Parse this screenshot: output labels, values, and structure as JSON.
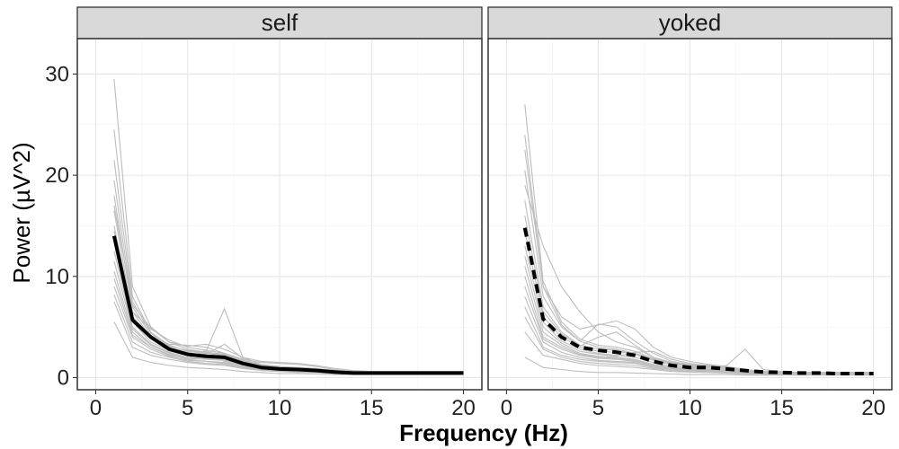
{
  "chart_data": {
    "type": "line",
    "xlabel": "Frequency (Hz)",
    "ylabel": "Power (µV^2)",
    "xlim": [
      -1,
      21
    ],
    "ylim": [
      -1.2,
      33.5
    ],
    "x_ticks": [
      0,
      5,
      10,
      15,
      20
    ],
    "y_ticks": [
      0,
      10,
      20,
      30
    ],
    "grid": true,
    "x": [
      1,
      2,
      3,
      4,
      5,
      6,
      7,
      8,
      9,
      10,
      11,
      12,
      13,
      14,
      15,
      16,
      17,
      18,
      19,
      20
    ],
    "panels": [
      {
        "label": "self",
        "mean": {
          "line_style": "solid",
          "values": [
            14.0,
            5.7,
            4.0,
            2.8,
            2.3,
            2.1,
            2.0,
            1.4,
            1.0,
            0.85,
            0.8,
            0.7,
            0.55,
            0.45,
            0.45,
            0.45,
            0.45,
            0.45,
            0.45,
            0.45
          ]
        },
        "subjects": [
          [
            29.5,
            9.0,
            5.0,
            3.5,
            2.8,
            2.5,
            2.3,
            1.7,
            1.3,
            1.1,
            1.0,
            0.9,
            0.7,
            0.6,
            0.55,
            0.55,
            0.5,
            0.5,
            0.5,
            0.5
          ],
          [
            24.5,
            8.0,
            4.5,
            3.2,
            2.6,
            2.4,
            2.2,
            1.6,
            1.2,
            1.0,
            0.9,
            0.8,
            0.65,
            0.55,
            0.5,
            0.5,
            0.5,
            0.5,
            0.5,
            0.5
          ],
          [
            21.5,
            7.5,
            4.4,
            3.0,
            2.5,
            2.6,
            6.8,
            2.0,
            1.3,
            1.0,
            0.9,
            0.8,
            0.6,
            0.5,
            0.5,
            0.5,
            0.5,
            0.5,
            0.5,
            0.5
          ],
          [
            19.5,
            7.0,
            4.2,
            3.1,
            2.7,
            2.5,
            2.3,
            1.7,
            1.2,
            1.0,
            0.9,
            0.8,
            0.6,
            0.5,
            0.5,
            0.5,
            0.5,
            0.5,
            0.5,
            0.5
          ],
          [
            18.0,
            6.5,
            4.0,
            2.9,
            2.4,
            2.3,
            3.3,
            1.9,
            1.1,
            0.9,
            0.8,
            0.7,
            0.55,
            0.45,
            0.45,
            0.45,
            0.45,
            0.45,
            0.45,
            0.45
          ],
          [
            16.5,
            6.0,
            4.0,
            3.3,
            3.2,
            3.0,
            2.4,
            1.6,
            1.2,
            1.0,
            1.0,
            0.9,
            0.7,
            0.6,
            0.5,
            0.5,
            0.5,
            0.5,
            0.5,
            0.5
          ],
          [
            15.0,
            6.0,
            4.0,
            2.8,
            2.3,
            2.2,
            2.1,
            1.5,
            1.0,
            0.9,
            0.8,
            0.7,
            0.55,
            0.45,
            0.45,
            0.45,
            0.45,
            0.45,
            0.45,
            0.45
          ],
          [
            13.5,
            5.5,
            3.5,
            2.7,
            2.2,
            2.0,
            1.9,
            1.4,
            1.0,
            0.8,
            0.7,
            0.7,
            0.5,
            0.45,
            0.45,
            0.45,
            0.45,
            0.45,
            0.45,
            0.45
          ],
          [
            12.5,
            5.0,
            3.3,
            2.5,
            2.0,
            1.9,
            1.8,
            1.3,
            0.9,
            0.8,
            0.7,
            0.6,
            0.5,
            0.4,
            0.4,
            0.4,
            0.4,
            0.4,
            0.4,
            0.4
          ],
          [
            11.5,
            4.8,
            3.2,
            2.4,
            1.9,
            1.8,
            1.7,
            1.2,
            0.9,
            0.7,
            0.7,
            0.6,
            0.5,
            0.4,
            0.4,
            0.4,
            0.4,
            0.4,
            0.4,
            0.4
          ],
          [
            10.5,
            4.5,
            3.0,
            2.3,
            1.8,
            1.6,
            1.5,
            1.1,
            0.8,
            0.7,
            0.6,
            0.6,
            0.45,
            0.4,
            0.4,
            0.4,
            0.4,
            0.4,
            0.4,
            0.4
          ],
          [
            9.8,
            4.2,
            3.0,
            2.2,
            1.9,
            2.7,
            1.6,
            1.2,
            0.9,
            0.8,
            0.7,
            0.6,
            0.5,
            0.4,
            0.4,
            0.4,
            0.4,
            0.4,
            0.4,
            0.4
          ],
          [
            9.0,
            4.0,
            2.8,
            2.1,
            1.7,
            1.6,
            1.4,
            1.0,
            0.8,
            0.7,
            0.6,
            0.5,
            0.45,
            0.4,
            0.4,
            0.4,
            0.4,
            0.4,
            0.4,
            0.4
          ],
          [
            8.2,
            3.5,
            2.5,
            2.0,
            1.6,
            1.4,
            1.3,
            1.0,
            0.7,
            0.6,
            0.6,
            0.5,
            0.4,
            0.35,
            0.35,
            0.35,
            0.35,
            0.35,
            0.35,
            0.35
          ],
          [
            7.5,
            3.0,
            2.2,
            1.8,
            1.5,
            1.3,
            1.2,
            0.9,
            0.7,
            0.6,
            0.5,
            0.5,
            0.4,
            0.35,
            0.35,
            0.35,
            0.35,
            0.35,
            0.35,
            0.35
          ],
          [
            5.5,
            2.0,
            1.5,
            1.2,
            1.0,
            0.9,
            0.8,
            0.6,
            0.5,
            0.4,
            0.4,
            0.35,
            0.3,
            0.3,
            0.3,
            0.3,
            0.3,
            0.3,
            0.3,
            0.3
          ],
          [
            14.5,
            6.5,
            4.8,
            3.7,
            3.0,
            2.7,
            2.4,
            1.8,
            1.5,
            1.4,
            1.3,
            1.1,
            0.8,
            0.6,
            0.5,
            0.5,
            0.5,
            0.5,
            0.5,
            0.5
          ],
          [
            17.0,
            7.2,
            4.9,
            3.5,
            3.1,
            3.3,
            2.8,
            2.0,
            1.6,
            1.5,
            1.4,
            1.2,
            0.9,
            0.7,
            0.6,
            0.6,
            0.6,
            0.6,
            0.6,
            0.6
          ]
        ]
      },
      {
        "label": "yoked",
        "mean": {
          "line_style": "dashed",
          "values": [
            14.8,
            5.8,
            4.0,
            3.0,
            2.7,
            2.5,
            2.2,
            1.6,
            1.2,
            1.0,
            1.0,
            0.85,
            0.7,
            0.55,
            0.5,
            0.45,
            0.45,
            0.4,
            0.4,
            0.4
          ]
        },
        "subjects": [
          [
            27.0,
            9.5,
            5.5,
            3.8,
            3.2,
            3.0,
            2.6,
            1.9,
            1.4,
            1.2,
            1.1,
            1.0,
            0.8,
            0.6,
            0.55,
            0.5,
            0.5,
            0.5,
            0.5,
            0.5
          ],
          [
            24.0,
            9.0,
            5.2,
            3.6,
            3.0,
            2.8,
            2.4,
            1.8,
            1.3,
            1.1,
            1.0,
            0.9,
            0.7,
            0.55,
            0.5,
            0.5,
            0.5,
            0.5,
            0.5,
            0.5
          ],
          [
            22.5,
            9.0,
            6.0,
            4.8,
            5.2,
            5.6,
            4.8,
            3.0,
            2.0,
            1.6,
            1.3,
            1.1,
            0.8,
            0.6,
            0.5,
            0.5,
            0.5,
            0.5,
            0.5,
            0.5
          ],
          [
            20.5,
            8.0,
            5.0,
            3.6,
            5.3,
            5.0,
            3.6,
            2.4,
            1.6,
            1.3,
            1.1,
            1.0,
            0.75,
            0.6,
            0.5,
            0.5,
            0.5,
            0.5,
            0.5,
            0.5
          ],
          [
            19.0,
            13.0,
            9.0,
            6.5,
            4.5,
            3.5,
            3.0,
            2.0,
            1.5,
            1.3,
            1.2,
            1.0,
            0.8,
            0.6,
            0.5,
            0.5,
            0.5,
            0.5,
            0.5,
            0.5
          ],
          [
            17.5,
            7.0,
            4.5,
            3.2,
            2.8,
            2.7,
            2.3,
            1.7,
            1.3,
            1.1,
            1.0,
            0.9,
            0.7,
            0.55,
            0.5,
            0.5,
            0.5,
            0.5,
            0.5,
            0.5
          ],
          [
            16.0,
            6.5,
            4.3,
            3.1,
            4.0,
            4.5,
            3.2,
            2.0,
            1.5,
            1.2,
            1.1,
            1.0,
            0.75,
            0.55,
            0.5,
            0.5,
            0.5,
            0.5,
            0.5,
            0.5
          ],
          [
            14.5,
            6.0,
            4.0,
            3.0,
            2.6,
            2.5,
            2.4,
            1.7,
            1.3,
            1.1,
            1.0,
            1.2,
            2.8,
            0.8,
            0.6,
            0.5,
            0.5,
            0.5,
            0.5,
            0.5
          ],
          [
            13.0,
            5.5,
            3.6,
            2.8,
            2.4,
            2.2,
            2.0,
            1.5,
            1.1,
            1.0,
            0.9,
            0.8,
            0.65,
            0.5,
            0.45,
            0.45,
            0.45,
            0.4,
            0.4,
            0.4
          ],
          [
            12.0,
            5.0,
            3.4,
            2.6,
            2.3,
            2.1,
            2.5,
            2.6,
            1.8,
            1.4,
            1.2,
            1.0,
            0.7,
            0.55,
            0.5,
            0.45,
            0.45,
            0.4,
            0.4,
            0.4
          ],
          [
            11.0,
            4.5,
            3.2,
            2.4,
            2.1,
            2.0,
            1.8,
            1.3,
            1.0,
            0.9,
            0.8,
            0.7,
            0.6,
            0.45,
            0.4,
            0.4,
            0.4,
            0.4,
            0.4,
            0.4
          ],
          [
            10.0,
            4.0,
            3.0,
            2.3,
            2.0,
            1.9,
            1.7,
            1.2,
            1.0,
            0.85,
            0.8,
            0.7,
            0.55,
            0.45,
            0.4,
            0.4,
            0.4,
            0.4,
            0.4,
            0.4
          ],
          [
            9.0,
            3.8,
            2.8,
            2.2,
            1.9,
            1.8,
            1.6,
            1.2,
            0.9,
            0.8,
            0.75,
            0.65,
            0.5,
            0.4,
            0.4,
            0.4,
            0.4,
            0.4,
            0.4,
            0.4
          ],
          [
            8.0,
            3.5,
            2.5,
            2.0,
            1.7,
            1.6,
            1.5,
            1.1,
            0.9,
            0.8,
            0.7,
            0.6,
            0.5,
            0.4,
            0.35,
            0.35,
            0.35,
            0.35,
            0.35,
            0.35
          ],
          [
            7.0,
            3.0,
            2.2,
            1.8,
            1.6,
            1.5,
            1.4,
            1.0,
            0.8,
            0.7,
            0.65,
            0.55,
            0.45,
            0.35,
            0.35,
            0.35,
            0.35,
            0.35,
            0.35,
            0.35
          ],
          [
            6.0,
            2.8,
            2.0,
            1.6,
            1.4,
            1.3,
            1.2,
            0.9,
            0.7,
            0.6,
            0.6,
            0.5,
            0.4,
            0.35,
            0.3,
            0.3,
            0.3,
            0.3,
            0.3,
            0.3
          ],
          [
            4.5,
            2.2,
            1.8,
            1.4,
            1.2,
            1.1,
            1.0,
            0.8,
            0.6,
            0.55,
            0.5,
            0.45,
            0.35,
            0.3,
            0.3,
            0.3,
            0.3,
            0.3,
            0.3,
            0.3
          ],
          [
            2.0,
            1.0,
            0.8,
            0.6,
            0.5,
            0.5,
            0.45,
            0.4,
            0.35,
            0.3,
            0.3,
            0.3,
            0.25,
            0.25,
            0.25,
            0.25,
            0.25,
            0.25,
            0.25,
            0.25
          ]
        ]
      }
    ]
  }
}
